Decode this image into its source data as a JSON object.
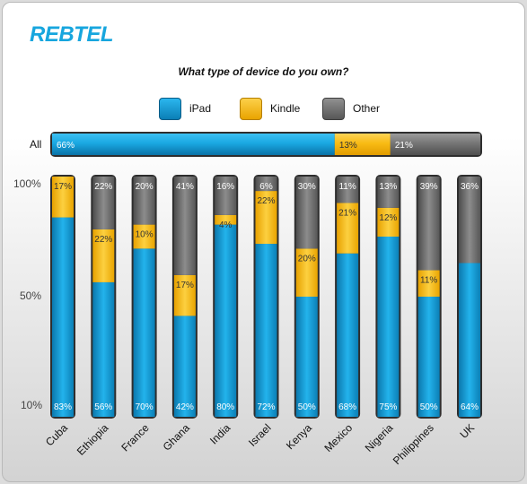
{
  "brand": {
    "logo_text": "REBTEL"
  },
  "colors": {
    "ipad": "#139fda",
    "kindle": "#f8b90f",
    "other": "#6c6c6c"
  },
  "chart_data": {
    "type": "bar",
    "stacked": true,
    "title": "What type of device do you own?",
    "legend": {
      "placement": "top-center",
      "items": [
        {
          "key": "ipad",
          "label": "iPad"
        },
        {
          "key": "kindle",
          "label": "Kindle"
        },
        {
          "key": "other",
          "label": "Other"
        }
      ]
    },
    "overall": {
      "label": "All",
      "ipad": 66,
      "kindle": 13,
      "other": 21
    },
    "y_ticks": [
      "100%",
      "50%",
      "10%"
    ],
    "categories": [
      "Cuba",
      "Ethiopia",
      "France",
      "Ghana",
      "India",
      "Israel",
      "Kenya",
      "Mexico",
      "Nigeria",
      "Philippines",
      "UK"
    ],
    "series": [
      {
        "key": "ipad",
        "name": "iPad",
        "values": [
          83,
          56,
          70,
          42,
          80,
          72,
          50,
          68,
          75,
          50,
          64
        ]
      },
      {
        "key": "kindle",
        "name": "Kindle",
        "values": [
          17,
          22,
          10,
          17,
          4,
          22,
          20,
          21,
          12,
          11,
          null
        ]
      },
      {
        "key": "other",
        "name": "Other",
        "values": [
          null,
          22,
          20,
          41,
          16,
          6,
          30,
          11,
          13,
          39,
          36
        ]
      }
    ]
  }
}
